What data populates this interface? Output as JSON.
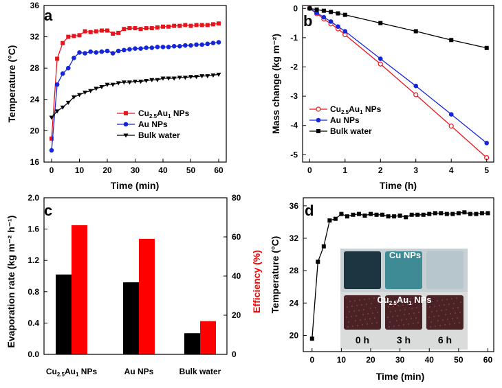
{
  "chart_data": [
    {
      "panel": "a",
      "type": "line",
      "xlabel": "Time (min)",
      "ylabel": "Temperature (°C)",
      "xlim": [
        0,
        60
      ],
      "ylim": [
        16,
        36
      ],
      "xticks": [
        0,
        10,
        20,
        30,
        40,
        50,
        60
      ],
      "yticks": [
        16,
        20,
        24,
        28,
        32,
        36
      ],
      "legend_position": "middle-right",
      "series": [
        {
          "name": "Cu2.5Au1 NPs",
          "label_main": "Cu",
          "label_sub1": "2.5",
          "label_mid": "Au",
          "label_sub2": "1",
          "label_end": " NPs",
          "color": "#e8141c",
          "marker": "square",
          "x": [
            0,
            2,
            4,
            6,
            8,
            10,
            12,
            14,
            16,
            18,
            20,
            22,
            24,
            26,
            28,
            30,
            32,
            34,
            36,
            38,
            40,
            42,
            44,
            46,
            48,
            50,
            52,
            54,
            56,
            58,
            60
          ],
          "y": [
            19.0,
            29.2,
            31.2,
            32.0,
            32.1,
            32.2,
            32.7,
            32.6,
            32.7,
            32.8,
            32.8,
            32.4,
            32.5,
            33.0,
            33.1,
            33.1,
            33.0,
            33.1,
            33.1,
            33.2,
            33.3,
            33.3,
            33.4,
            33.4,
            33.5,
            33.4,
            33.5,
            33.5,
            33.5,
            33.6,
            33.7
          ]
        },
        {
          "name": "Au NPs",
          "label_main": "Au NPs",
          "color": "#1426d8",
          "marker": "circle",
          "x": [
            0,
            2,
            4,
            6,
            8,
            10,
            12,
            14,
            16,
            18,
            20,
            22,
            24,
            26,
            28,
            30,
            32,
            34,
            36,
            38,
            40,
            42,
            44,
            46,
            48,
            50,
            52,
            54,
            56,
            58,
            60
          ],
          "y": [
            17.5,
            25.9,
            27.3,
            28.0,
            29.3,
            30.0,
            29.9,
            30.1,
            30.0,
            30.1,
            30.2,
            29.9,
            30.2,
            30.3,
            30.4,
            30.5,
            30.5,
            30.6,
            30.6,
            30.7,
            30.7,
            30.7,
            30.8,
            30.8,
            30.9,
            30.9,
            31.0,
            31.0,
            31.1,
            31.2,
            31.3
          ]
        },
        {
          "name": "Bulk water",
          "label_main": "Bulk water",
          "color": "#000000",
          "marker": "triangle-down",
          "x": [
            0,
            2,
            4,
            6,
            8,
            10,
            12,
            14,
            16,
            18,
            20,
            22,
            24,
            26,
            28,
            30,
            32,
            34,
            36,
            38,
            40,
            42,
            44,
            46,
            48,
            50,
            52,
            54,
            56,
            58,
            60
          ],
          "y": [
            21.7,
            22.5,
            23.0,
            23.6,
            24.3,
            24.6,
            24.9,
            25.1,
            25.4,
            25.6,
            25.9,
            25.9,
            26.1,
            26.2,
            26.2,
            26.3,
            26.3,
            26.4,
            26.5,
            26.5,
            26.7,
            26.7,
            26.7,
            26.8,
            26.8,
            26.9,
            26.9,
            27.0,
            27.0,
            27.1,
            27.2
          ]
        }
      ]
    },
    {
      "panel": "b",
      "type": "line",
      "xlabel": "Time (h)",
      "ylabel": "Mass change (kg m⁻²)",
      "xlim": [
        -0.2,
        5.2
      ],
      "ylim": [
        -5.25,
        0.1
      ],
      "xticks": [
        0,
        1,
        2,
        3,
        4,
        5
      ],
      "yticks": [
        0,
        -1,
        -2,
        -3,
        -4,
        -5
      ],
      "legend_position": "lower-left",
      "series": [
        {
          "name": "Cu2.5Au1 NPs",
          "label_main": "Cu",
          "label_sub1": "2.5",
          "label_mid": "Au",
          "label_sub2": "1",
          "label_end": " NPs",
          "color": "#e8141c",
          "marker": "circle-open",
          "x": [
            0,
            0.2,
            0.4,
            0.6,
            0.8,
            1,
            2,
            3,
            4,
            5
          ],
          "y": [
            0,
            -0.18,
            -0.36,
            -0.53,
            -0.7,
            -0.9,
            -1.9,
            -2.95,
            -4.02,
            -5.1
          ]
        },
        {
          "name": "Au NPs",
          "label_main": "Au NPs",
          "color": "#1426d8",
          "marker": "circle",
          "x": [
            0,
            0.2,
            0.4,
            0.6,
            0.8,
            1,
            2,
            3,
            4,
            5
          ],
          "y": [
            0,
            -0.15,
            -0.3,
            -0.45,
            -0.62,
            -0.78,
            -1.72,
            -2.65,
            -3.62,
            -4.6
          ]
        },
        {
          "name": "Bulk water",
          "label_main": "Bulk water",
          "color": "#000000",
          "marker": "square",
          "x": [
            0,
            0.2,
            0.4,
            0.6,
            0.8,
            1,
            2,
            3,
            4,
            5
          ],
          "y": [
            0,
            -0.04,
            -0.08,
            -0.12,
            -0.17,
            -0.22,
            -0.5,
            -0.78,
            -1.08,
            -1.35
          ]
        }
      ]
    },
    {
      "panel": "c",
      "type": "bar",
      "categories": [
        "Cu2.5Au1 NPs",
        "Au NPs",
        "Bulk water"
      ],
      "category_labels": [
        {
          "main": "Cu",
          "sub1": "2.5",
          "mid": "Au",
          "sub2": "1",
          "end": " NPs"
        },
        {
          "main": "Au NPs"
        },
        {
          "main": "Bulk water"
        }
      ],
      "ylabel": "Evaporation rate (kg m⁻² h⁻¹)",
      "y2label": "Efficiency (%)",
      "ylim": [
        0,
        2.0
      ],
      "y2lim": [
        0,
        80
      ],
      "yticks": [
        "0.0",
        "0.4",
        "0.8",
        "1.2",
        "1.6",
        "2.0"
      ],
      "y2ticks": [
        "0",
        "20",
        "40",
        "60",
        "80"
      ],
      "series": [
        {
          "name": "Evaporation rate",
          "color": "#000000",
          "axis": "left",
          "values": [
            1.02,
            0.92,
            0.27
          ]
        },
        {
          "name": "Efficiency",
          "color": "#ff0000",
          "axis": "right",
          "values": [
            66,
            59,
            17
          ]
        }
      ]
    },
    {
      "panel": "d",
      "type": "line",
      "xlabel": "Time (min)",
      "ylabel": "Temperature (°C)",
      "xlim": [
        -3,
        62
      ],
      "ylim": [
        18,
        37
      ],
      "xticks": [
        0,
        10,
        20,
        30,
        40,
        50,
        60
      ],
      "yticks": [
        20,
        24,
        28,
        32,
        36
      ],
      "series": [
        {
          "color": "#000000",
          "marker": "square",
          "x": [
            0,
            2,
            4,
            6,
            8,
            10,
            12,
            14,
            16,
            18,
            20,
            22,
            24,
            26,
            28,
            30,
            32,
            34,
            36,
            38,
            40,
            42,
            44,
            46,
            48,
            50,
            52,
            54,
            56,
            58,
            60
          ],
          "y": [
            19.6,
            29.1,
            31.0,
            34.2,
            34.4,
            35.0,
            34.7,
            34.9,
            35.0,
            34.8,
            35.0,
            34.9,
            34.9,
            34.7,
            34.7,
            34.8,
            34.6,
            34.9,
            34.9,
            34.9,
            35.0,
            35.1,
            35.1,
            35.0,
            35.0,
            35.1,
            35.2,
            35.0,
            35.0,
            35.1,
            35.1
          ]
        }
      ],
      "inset_photo": {
        "label_top": "Cu NPs",
        "label_bottom_main": "Cu",
        "label_bottom_sub1": "2.5",
        "label_bottom_mid": "Au",
        "label_bottom_sub2": "1",
        "label_bottom_end": " NPs",
        "times": [
          "0 h",
          "3 h",
          "6 h"
        ],
        "top_colors": [
          "#1d3540",
          "#3e8a95",
          "#b6c6cc"
        ],
        "bottom_color": "#4a2226"
      }
    }
  ],
  "panel_labels": [
    "a",
    "b",
    "c",
    "d"
  ]
}
